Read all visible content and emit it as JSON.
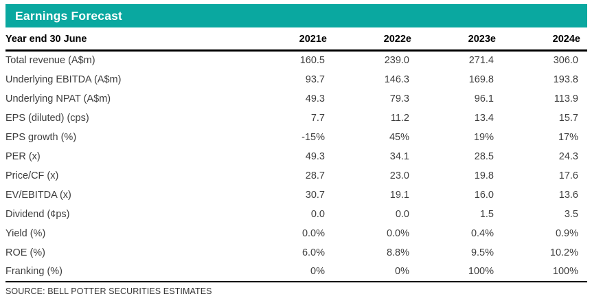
{
  "title": "Earnings Forecast",
  "colors": {
    "accent_teal": "#0AA8A0",
    "title_text": "#FFFFFF",
    "header_text": "#000000",
    "body_text": "#3D3D3D"
  },
  "table": {
    "row_header_label": "Year end 30 June",
    "columns": [
      "2021e",
      "2022e",
      "2023e",
      "2024e"
    ],
    "rows": [
      {
        "label": "Total revenue (A$m)",
        "values": [
          "160.5",
          "239.0",
          "271.4",
          "306.0"
        ]
      },
      {
        "label": "Underlying EBITDA (A$m)",
        "values": [
          "93.7",
          "146.3",
          "169.8",
          "193.8"
        ]
      },
      {
        "label": "Underlying NPAT (A$m)",
        "values": [
          "49.3",
          "79.3",
          "96.1",
          "113.9"
        ]
      },
      {
        "label": "EPS (diluted) (cps)",
        "values": [
          "7.7",
          "11.2",
          "13.4",
          "15.7"
        ]
      },
      {
        "label": "EPS growth (%)",
        "values": [
          "-15%",
          "45%",
          "19%",
          "17%"
        ]
      },
      {
        "label": "PER (x)",
        "values": [
          "49.3",
          "34.1",
          "28.5",
          "24.3"
        ]
      },
      {
        "label": "Price/CF (x)",
        "values": [
          "28.7",
          "23.0",
          "19.8",
          "17.6"
        ]
      },
      {
        "label": "EV/EBITDA (x)",
        "values": [
          "30.7",
          "19.1",
          "16.0",
          "13.6"
        ]
      },
      {
        "label": "Dividend (¢ps)",
        "values": [
          "0.0",
          "0.0",
          "1.5",
          "3.5"
        ]
      },
      {
        "label": "Yield (%)",
        "values": [
          "0.0%",
          "0.0%",
          "0.4%",
          "0.9%"
        ]
      },
      {
        "label": "ROE (%)",
        "values": [
          "6.0%",
          "8.8%",
          "9.5%",
          "10.2%"
        ]
      },
      {
        "label": "Franking (%)",
        "values": [
          "0%",
          "0%",
          "100%",
          "100%"
        ]
      }
    ]
  },
  "source": "SOURCE: BELL POTTER SECURITIES ESTIMATES"
}
